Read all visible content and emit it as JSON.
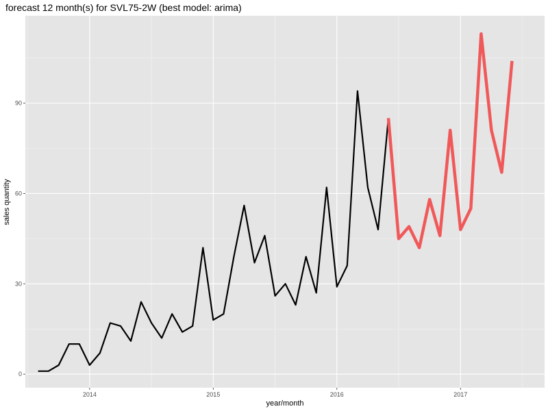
{
  "chart_data": {
    "type": "line",
    "title": "forecast 12 month(s) for SVL75-2W (best model: arima)",
    "xlabel": "year/month",
    "ylabel": "sales quantity",
    "x_ticks": [
      "2014",
      "2015",
      "2016",
      "2017"
    ],
    "y_ticks": [
      0,
      30,
      60,
      90
    ],
    "ylim": [
      -4.5,
      119
    ],
    "grid": true,
    "series": [
      {
        "color": "#000000",
        "points": [
          [
            "2013-08",
            1
          ],
          [
            "2013-09",
            1
          ],
          [
            "2013-10",
            3
          ],
          [
            "2013-11",
            10
          ],
          [
            "2013-12",
            10
          ],
          [
            "2014-01",
            3
          ],
          [
            "2014-02",
            7
          ],
          [
            "2014-03",
            17
          ],
          [
            "2014-04",
            16
          ],
          [
            "2014-05",
            11
          ],
          [
            "2014-06",
            24
          ],
          [
            "2014-07",
            17
          ],
          [
            "2014-08",
            12
          ],
          [
            "2014-09",
            20
          ],
          [
            "2014-10",
            14
          ],
          [
            "2014-11",
            16
          ],
          [
            "2014-12",
            42
          ],
          [
            "2015-01",
            18
          ],
          [
            "2015-02",
            20
          ],
          [
            "2015-03",
            39
          ],
          [
            "2015-04",
            56
          ],
          [
            "2015-05",
            37
          ],
          [
            "2015-06",
            46
          ],
          [
            "2015-07",
            26
          ],
          [
            "2015-08",
            30
          ],
          [
            "2015-09",
            23
          ],
          [
            "2015-10",
            39
          ],
          [
            "2015-11",
            27
          ],
          [
            "2015-12",
            62
          ],
          [
            "2016-01",
            29
          ],
          [
            "2016-02",
            36
          ],
          [
            "2016-03",
            94
          ],
          [
            "2016-04",
            62
          ],
          [
            "2016-05",
            48
          ],
          [
            "2016-06",
            85
          ]
        ]
      },
      {
        "color": "#f0595a",
        "points": [
          [
            "2016-06",
            85
          ],
          [
            "2016-07",
            45
          ],
          [
            "2016-08",
            49
          ],
          [
            "2016-09",
            42
          ],
          [
            "2016-10",
            58
          ],
          [
            "2016-11",
            46
          ],
          [
            "2016-12",
            81
          ],
          [
            "2017-01",
            48
          ],
          [
            "2017-02",
            55
          ],
          [
            "2017-03",
            113
          ],
          [
            "2017-04",
            81
          ],
          [
            "2017-05",
            67
          ],
          [
            "2017-06",
            104
          ]
        ]
      }
    ]
  }
}
